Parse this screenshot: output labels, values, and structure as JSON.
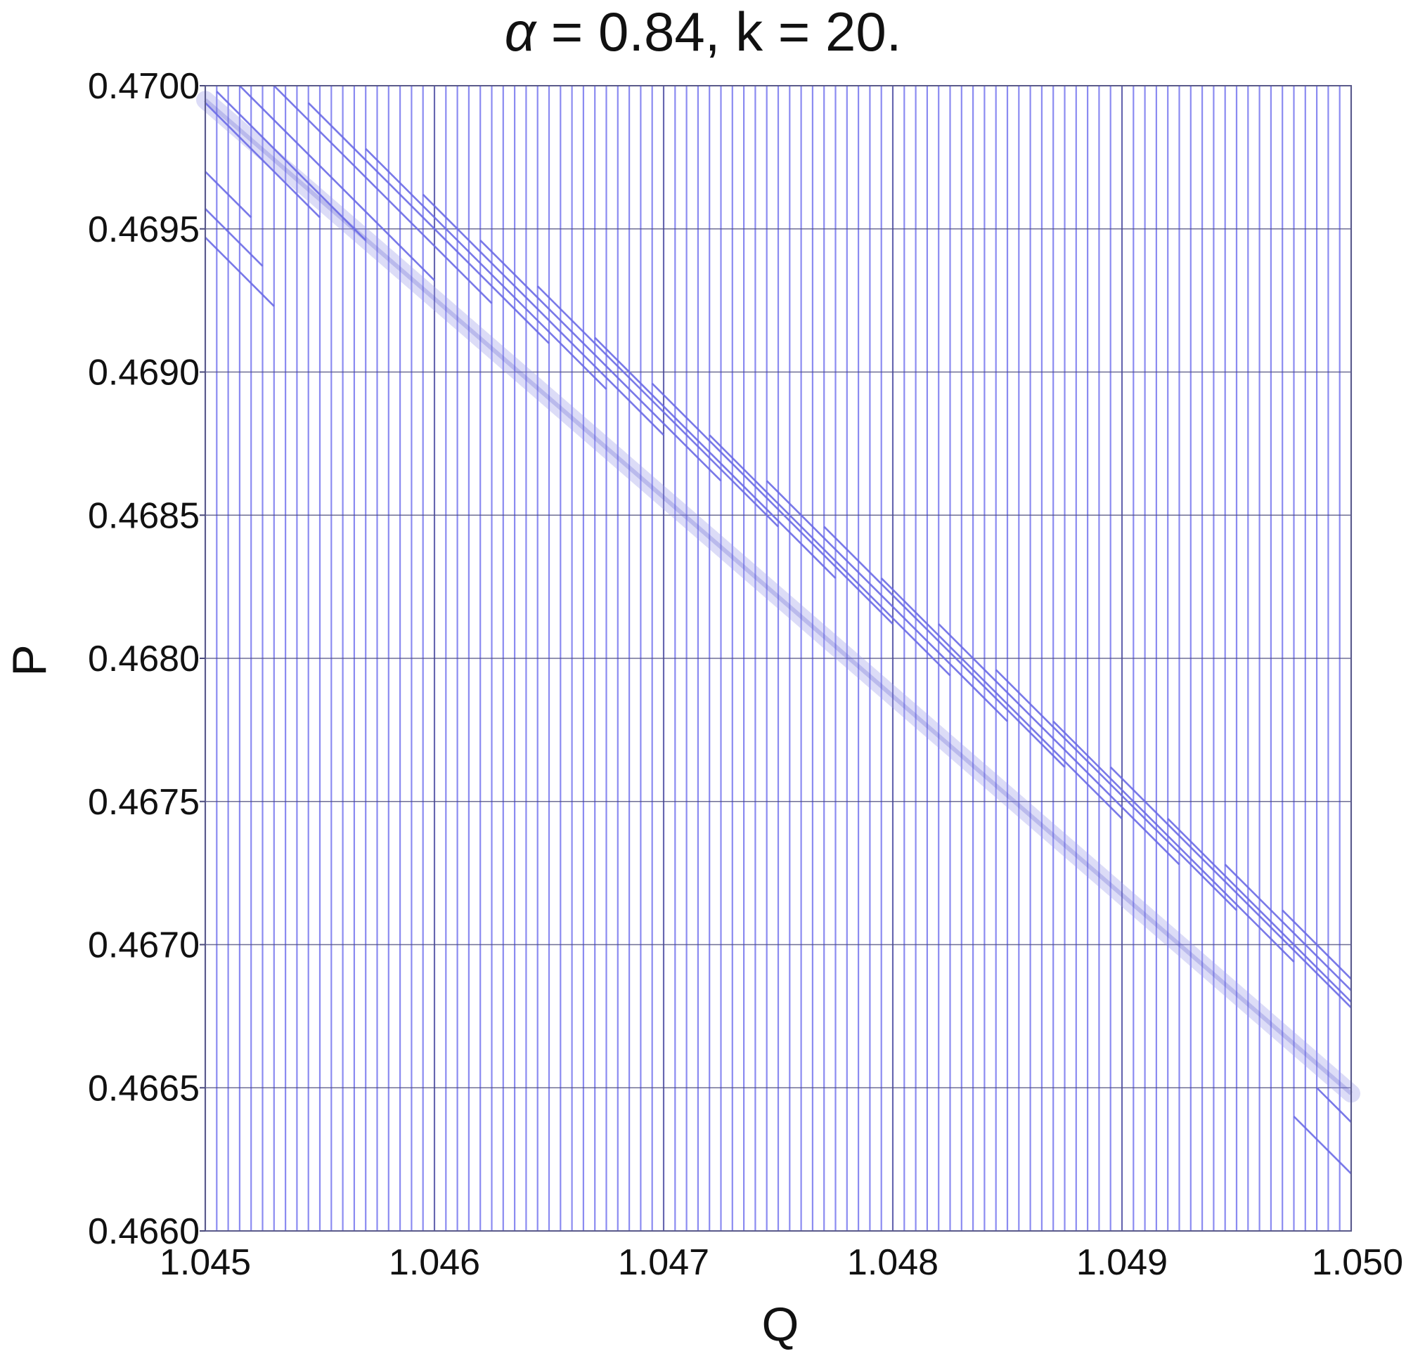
{
  "chart_data": {
    "type": "line",
    "title_prefix": "α",
    "title_rest": " = 0.84, k = 20.",
    "xlabel": "Q",
    "ylabel": "P",
    "xlim": [
      1.045,
      1.05
    ],
    "ylim": [
      0.466,
      0.47
    ],
    "x_ticks": [
      "1.045",
      "1.046",
      "1.047",
      "1.048",
      "1.049",
      "1.050"
    ],
    "y_ticks": [
      "0.4660",
      "0.4665",
      "0.4670",
      "0.4675",
      "0.4680",
      "0.4685",
      "0.4690",
      "0.4695",
      "0.4700"
    ],
    "x_tick_values": [
      1.045,
      1.046,
      1.047,
      1.048,
      1.049,
      1.05
    ],
    "y_tick_values": [
      0.466,
      0.4665,
      0.467,
      0.4675,
      0.468,
      0.4685,
      0.469,
      0.4695,
      0.47
    ],
    "grid": true,
    "series": [
      {
        "kind": "vertical-lines",
        "x_start": 1.045,
        "x_step": 5e-05,
        "count": 101,
        "y_range": [
          0.466,
          0.47
        ]
      },
      {
        "kind": "diagonal-segments",
        "slope": -0.8,
        "segments": [
          {
            "x": [
              1.045,
              1.0452
            ],
            "y": [
              0.4697,
              0.46954
            ]
          },
          {
            "x": [
              1.045,
              1.04525
            ],
            "y": [
              0.46957,
              0.46937
            ]
          },
          {
            "x": [
              1.045,
              1.0453
            ],
            "y": [
              0.46947,
              0.46923
            ]
          },
          {
            "x": [
              1.045,
              1.0455
            ],
            "y": [
              0.46994,
              0.46954
            ]
          },
          {
            "x": [
              1.04505,
              1.0457
            ],
            "y": [
              0.46998,
              0.46946
            ]
          },
          {
            "x": [
              1.04515,
              1.046
            ],
            "y": [
              0.47,
              0.46932
            ]
          },
          {
            "x": [
              1.0453,
              1.04625
            ],
            "y": [
              0.47,
              0.46924
            ]
          },
          {
            "x": [
              1.04545,
              1.0465
            ],
            "y": [
              0.46994,
              0.4691
            ]
          },
          {
            "x": [
              1.0457,
              1.04675
            ],
            "y": [
              0.46978,
              0.46894
            ]
          },
          {
            "x": [
              1.04595,
              1.047
            ],
            "y": [
              0.46962,
              0.46878
            ]
          },
          {
            "x": [
              1.0462,
              1.04725
            ],
            "y": [
              0.46946,
              0.46862
            ]
          },
          {
            "x": [
              1.04645,
              1.0475
            ],
            "y": [
              0.4693,
              0.46846
            ]
          },
          {
            "x": [
              1.0467,
              1.04775
            ],
            "y": [
              0.46912,
              0.46828
            ]
          },
          {
            "x": [
              1.04695,
              1.048
            ],
            "y": [
              0.46896,
              0.46812
            ]
          },
          {
            "x": [
              1.0472,
              1.04825
            ],
            "y": [
              0.46878,
              0.46794
            ]
          },
          {
            "x": [
              1.04745,
              1.0485
            ],
            "y": [
              0.46862,
              0.46778
            ]
          },
          {
            "x": [
              1.0477,
              1.04875
            ],
            "y": [
              0.46846,
              0.46762
            ]
          },
          {
            "x": [
              1.04795,
              1.049
            ],
            "y": [
              0.46828,
              0.46744
            ]
          },
          {
            "x": [
              1.0482,
              1.04925
            ],
            "y": [
              0.46812,
              0.46728
            ]
          },
          {
            "x": [
              1.04845,
              1.0495
            ],
            "y": [
              0.46796,
              0.46712
            ]
          },
          {
            "x": [
              1.0487,
              1.04975
            ],
            "y": [
              0.46778,
              0.46694
            ]
          },
          {
            "x": [
              1.04895,
              1.05
            ],
            "y": [
              0.46762,
              0.46678
            ]
          },
          {
            "x": [
              1.0492,
              1.05
            ],
            "y": [
              0.46744,
              0.4668
            ]
          },
          {
            "x": [
              1.04945,
              1.05
            ],
            "y": [
              0.46728,
              0.46684
            ]
          },
          {
            "x": [
              1.0497,
              1.05
            ],
            "y": [
              0.46712,
              0.46688
            ]
          },
          {
            "x": [
              1.04985,
              1.05
            ],
            "y": [
              0.4665,
              0.46638
            ]
          },
          {
            "x": [
              1.04975,
              1.05
            ],
            "y": [
              0.4664,
              0.4662
            ]
          }
        ]
      }
    ]
  }
}
